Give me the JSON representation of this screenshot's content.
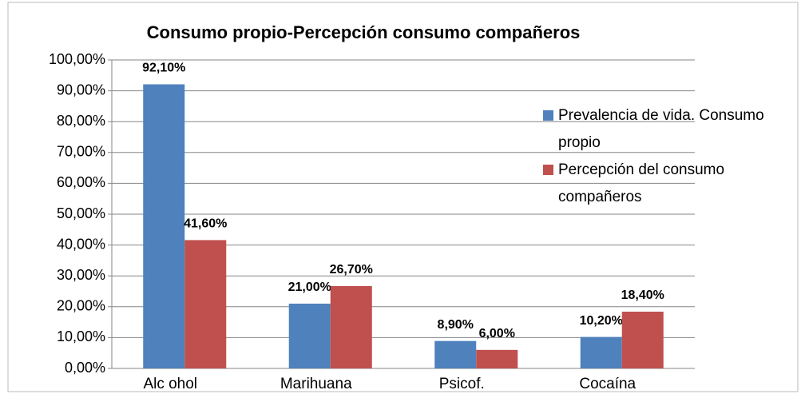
{
  "chart_data": {
    "type": "bar",
    "title": "Consumo propio-Percepción consumo compañeros",
    "categories": [
      "Alc ohol",
      "Marihuana",
      "Psicof.",
      "Cocaína"
    ],
    "series": [
      {
        "name": "Prevalencia de vida. Consumo propio",
        "color": "#4f81bd",
        "values": [
          92.1,
          21.0,
          8.9,
          10.2
        ],
        "value_labels": [
          "92,10%",
          "21,00%",
          "8,90%",
          "10,20%"
        ]
      },
      {
        "name": "Percepción del consumo compañeros",
        "color": "#c0504d",
        "values": [
          41.6,
          26.7,
          6.0,
          18.4
        ],
        "value_labels": [
          "41,60%",
          "26,70%",
          "6,00%",
          "18,40%"
        ]
      }
    ],
    "ylim": [
      0,
      100
    ],
    "yticks": [
      {
        "value": 0,
        "label": "0,00%"
      },
      {
        "value": 10,
        "label": "10,00%"
      },
      {
        "value": 20,
        "label": "20,00%"
      },
      {
        "value": 30,
        "label": "30,00%"
      },
      {
        "value": 40,
        "label": "40,00%"
      },
      {
        "value": 50,
        "label": "50,00%"
      },
      {
        "value": 60,
        "label": "60,00%"
      },
      {
        "value": 70,
        "label": "70,00%"
      },
      {
        "value": 80,
        "label": "80,00%"
      },
      {
        "value": 90,
        "label": "90,00%"
      },
      {
        "value": 100,
        "label": "100,00%"
      }
    ],
    "grid": true,
    "legend": "right"
  }
}
